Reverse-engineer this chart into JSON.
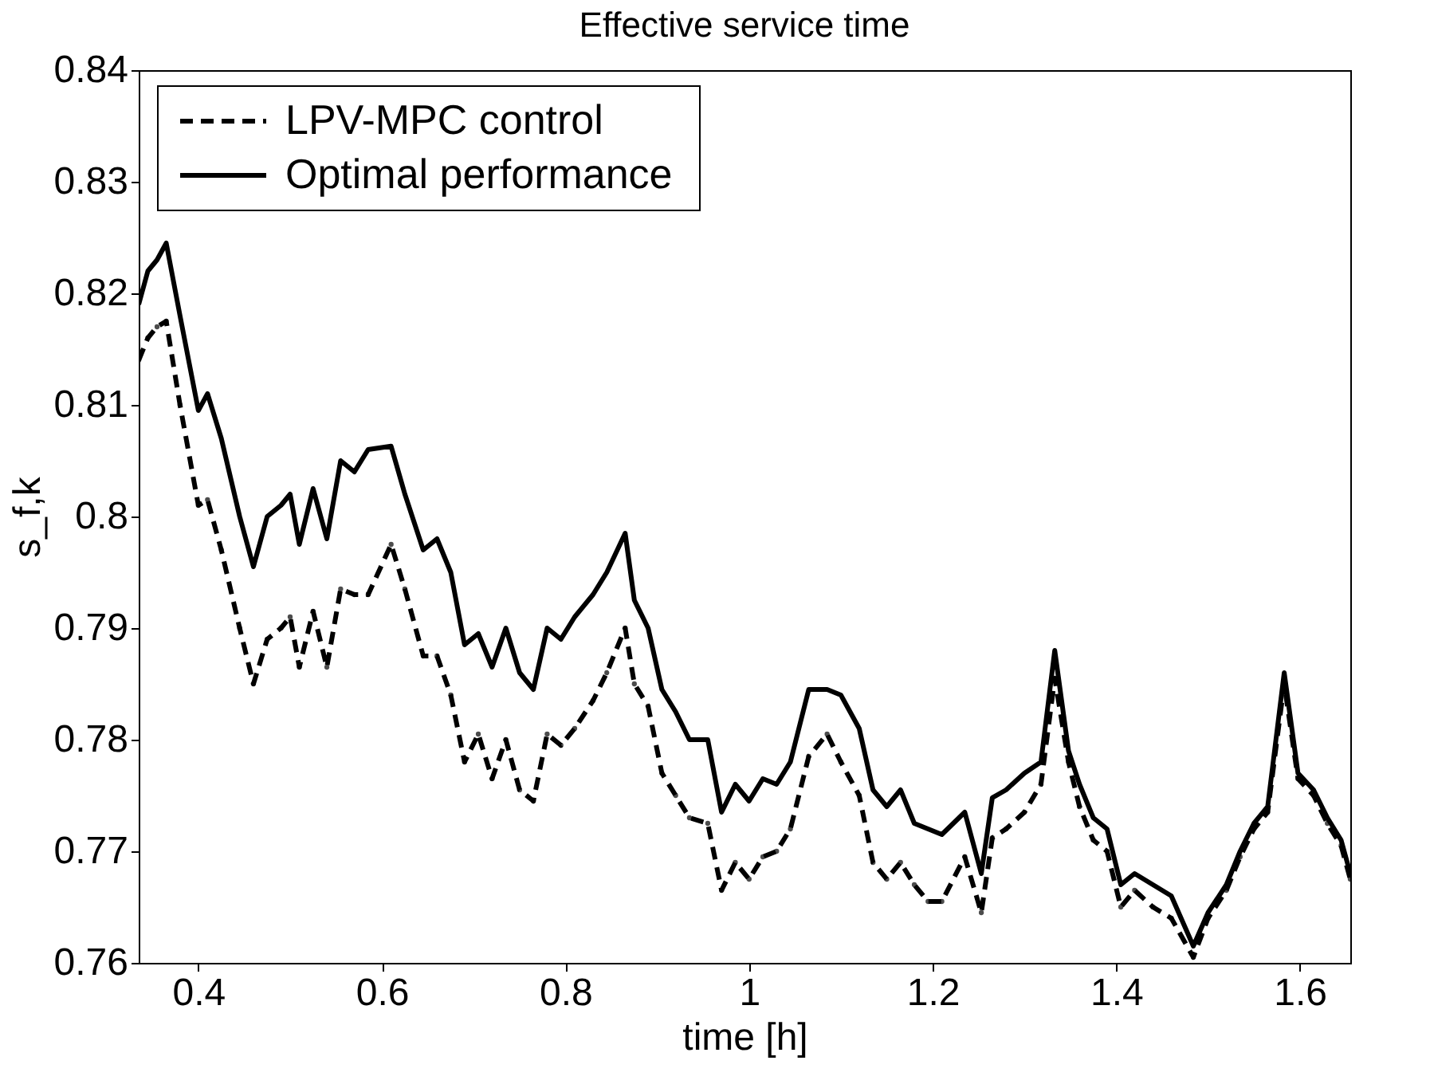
{
  "chart_data": {
    "type": "line",
    "title": "Effective service time",
    "xlabel": "time [h]",
    "ylabel": "s_f,k",
    "xlim": [
      0.335,
      1.655
    ],
    "xticks": [
      0.4,
      0.6,
      0.8,
      1,
      1.2,
      1.4,
      1.6
    ],
    "ylim": [
      0.76,
      0.84
    ],
    "yticks": [
      0.76,
      0.77,
      0.78,
      0.79,
      0.8,
      0.81,
      0.82,
      0.83,
      0.84
    ],
    "grid": false,
    "legend": "top left",
    "series": [
      {
        "name": "LPV-MPC control",
        "color": "#000000",
        "line_style": "dashed",
        "marker": "circle",
        "x": [
          0.335,
          0.345,
          0.355,
          0.365,
          0.38,
          0.4,
          0.41,
          0.425,
          0.445,
          0.46,
          0.475,
          0.49,
          0.5,
          0.51,
          0.525,
          0.54,
          0.555,
          0.57,
          0.585,
          0.61,
          0.625,
          0.645,
          0.66,
          0.675,
          0.69,
          0.705,
          0.72,
          0.735,
          0.75,
          0.765,
          0.78,
          0.795,
          0.81,
          0.83,
          0.845,
          0.865,
          0.875,
          0.89,
          0.905,
          0.92,
          0.935,
          0.955,
          0.97,
          0.985,
          1.0,
          1.015,
          1.03,
          1.045,
          1.065,
          1.085,
          1.1,
          1.12,
          1.135,
          1.15,
          1.165,
          1.18,
          1.195,
          1.21,
          1.235,
          1.253,
          1.265,
          1.28,
          1.3,
          1.318,
          1.333,
          1.348,
          1.36,
          1.375,
          1.39,
          1.405,
          1.42,
          1.44,
          1.46,
          1.484,
          1.5,
          1.52,
          1.535,
          1.55,
          1.565,
          1.583,
          1.598,
          1.615,
          1.63,
          1.645,
          1.655
        ],
        "values": [
          0.814,
          0.816,
          0.817,
          0.8175,
          0.81,
          0.801,
          0.8015,
          0.797,
          0.79,
          0.785,
          0.789,
          0.79,
          0.791,
          0.7865,
          0.7915,
          0.7865,
          0.7935,
          0.793,
          0.793,
          0.7975,
          0.7935,
          0.7875,
          0.7875,
          0.784,
          0.778,
          0.7805,
          0.7765,
          0.78,
          0.7755,
          0.7745,
          0.7805,
          0.7795,
          0.781,
          0.7835,
          0.786,
          0.79,
          0.785,
          0.783,
          0.777,
          0.775,
          0.773,
          0.7725,
          0.7665,
          0.769,
          0.7675,
          0.7695,
          0.77,
          0.772,
          0.7785,
          0.7805,
          0.778,
          0.775,
          0.769,
          0.7675,
          0.769,
          0.767,
          0.7655,
          0.7655,
          0.7695,
          0.7645,
          0.7712,
          0.772,
          0.7735,
          0.776,
          0.7855,
          0.778,
          0.774,
          0.771,
          0.77,
          0.765,
          0.7665,
          0.765,
          0.764,
          0.7605,
          0.764,
          0.7665,
          0.7695,
          0.772,
          0.7735,
          0.785,
          0.7765,
          0.775,
          0.7725,
          0.7705,
          0.7675
        ]
      },
      {
        "name": "Optimal performance",
        "color": "#000000",
        "line_style": "solid",
        "x": [
          0.335,
          0.345,
          0.355,
          0.365,
          0.38,
          0.4,
          0.41,
          0.425,
          0.445,
          0.46,
          0.475,
          0.49,
          0.5,
          0.51,
          0.525,
          0.54,
          0.555,
          0.57,
          0.585,
          0.61,
          0.625,
          0.645,
          0.66,
          0.675,
          0.69,
          0.705,
          0.72,
          0.735,
          0.75,
          0.765,
          0.78,
          0.795,
          0.81,
          0.83,
          0.845,
          0.865,
          0.875,
          0.89,
          0.905,
          0.92,
          0.935,
          0.955,
          0.97,
          0.985,
          1.0,
          1.015,
          1.03,
          1.045,
          1.065,
          1.085,
          1.1,
          1.12,
          1.135,
          1.15,
          1.165,
          1.18,
          1.195,
          1.21,
          1.235,
          1.253,
          1.265,
          1.28,
          1.3,
          1.318,
          1.333,
          1.348,
          1.36,
          1.375,
          1.39,
          1.405,
          1.42,
          1.44,
          1.46,
          1.484,
          1.5,
          1.52,
          1.535,
          1.55,
          1.565,
          1.583,
          1.598,
          1.615,
          1.63,
          1.645,
          1.655
        ],
        "values": [
          0.819,
          0.822,
          0.823,
          0.8245,
          0.818,
          0.8095,
          0.811,
          0.807,
          0.8,
          0.7955,
          0.8,
          0.801,
          0.802,
          0.7975,
          0.8025,
          0.798,
          0.805,
          0.804,
          0.806,
          0.8063,
          0.802,
          0.797,
          0.798,
          0.795,
          0.7885,
          0.7895,
          0.7865,
          0.79,
          0.786,
          0.7845,
          0.79,
          0.789,
          0.791,
          0.793,
          0.795,
          0.7985,
          0.7925,
          0.79,
          0.7845,
          0.7825,
          0.78,
          0.78,
          0.7735,
          0.776,
          0.7745,
          0.7765,
          0.776,
          0.778,
          0.7845,
          0.7845,
          0.784,
          0.781,
          0.7755,
          0.774,
          0.7755,
          0.7725,
          0.772,
          0.7715,
          0.7735,
          0.768,
          0.7748,
          0.7755,
          0.777,
          0.778,
          0.788,
          0.779,
          0.776,
          0.773,
          0.772,
          0.767,
          0.768,
          0.767,
          0.766,
          0.7615,
          0.7645,
          0.767,
          0.77,
          0.7725,
          0.774,
          0.786,
          0.777,
          0.7755,
          0.773,
          0.771,
          0.768
        ]
      }
    ]
  }
}
